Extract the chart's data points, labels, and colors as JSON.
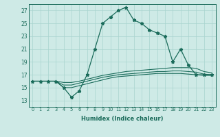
{
  "xlabel": "Humidex (Indice chaleur)",
  "x": [
    0,
    1,
    2,
    3,
    4,
    5,
    6,
    7,
    8,
    9,
    10,
    11,
    12,
    13,
    14,
    15,
    16,
    17,
    18,
    19,
    20,
    21,
    22,
    23
  ],
  "y_main": [
    16,
    16,
    16,
    16,
    15,
    13.5,
    14.5,
    17,
    21,
    25,
    26,
    27,
    27.5,
    25.5,
    25,
    24,
    23.5,
    23,
    19,
    21,
    18.5,
    17,
    17,
    17
  ],
  "y_line1": [
    16,
    16,
    16,
    16,
    15.8,
    15.8,
    16.0,
    16.3,
    16.6,
    16.9,
    17.1,
    17.3,
    17.5,
    17.6,
    17.7,
    17.8,
    17.9,
    18.0,
    18.1,
    18.1,
    18.1,
    18.0,
    17.5,
    17.3
  ],
  "y_line2": [
    16,
    16,
    16,
    16,
    15.4,
    15.4,
    15.7,
    16.0,
    16.3,
    16.6,
    16.8,
    17.0,
    17.1,
    17.2,
    17.3,
    17.4,
    17.5,
    17.5,
    17.6,
    17.6,
    17.5,
    17.4,
    17.1,
    17.0
  ],
  "y_line3": [
    16,
    16,
    16,
    16,
    15.0,
    15.0,
    15.3,
    15.6,
    15.9,
    16.2,
    16.5,
    16.7,
    16.8,
    16.9,
    17.0,
    17.1,
    17.2,
    17.2,
    17.2,
    17.2,
    17.1,
    17.0,
    16.9,
    16.9
  ],
  "line_color": "#1a6b5a",
  "bg_color": "#ceeae6",
  "grid_color": "#a8d4cf",
  "ylim": [
    12,
    28
  ],
  "yticks": [
    13,
    15,
    17,
    19,
    21,
    23,
    25,
    27
  ],
  "xlim": [
    -0.5,
    23.5
  ],
  "xticks": [
    0,
    1,
    2,
    3,
    4,
    5,
    6,
    7,
    8,
    9,
    10,
    11,
    12,
    13,
    14,
    15,
    16,
    17,
    18,
    19,
    20,
    21,
    22,
    23
  ]
}
